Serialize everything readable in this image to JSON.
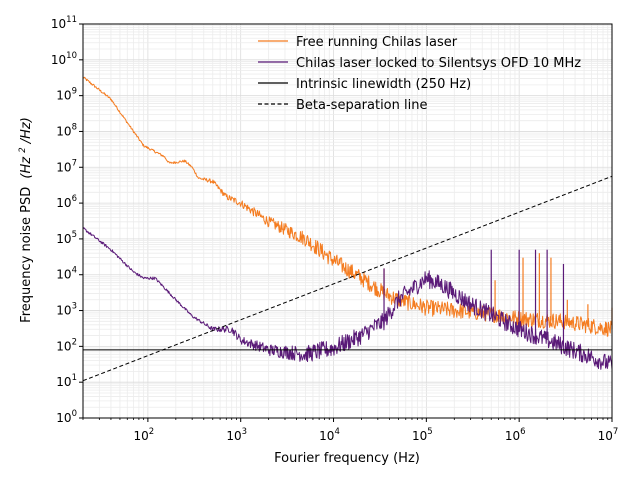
{
  "chart_data": {
    "type": "line",
    "title": "",
    "xlabel": "Fourier frequency (Hz)",
    "ylabel": "Frequency noise PSD",
    "ylabel_unit": "(Hz",
    "ylabel_unit_sup": "2",
    "ylabel_unit_tail": "/Hz)",
    "xscale": "log",
    "yscale": "log",
    "xlim": [
      20,
      10000000
    ],
    "ylim": [
      1,
      100000000000
    ],
    "grid": true,
    "legend_position": "top-right",
    "x_ticks": [
      {
        "base": "10",
        "exp": "2",
        "value": 100
      },
      {
        "base": "10",
        "exp": "3",
        "value": 1000
      },
      {
        "base": "10",
        "exp": "4",
        "value": 10000
      },
      {
        "base": "10",
        "exp": "5",
        "value": 100000
      },
      {
        "base": "10",
        "exp": "6",
        "value": 1000000
      },
      {
        "base": "10",
        "exp": "7",
        "value": 10000000
      }
    ],
    "y_ticks": [
      {
        "base": "10",
        "exp": "0",
        "value": 1
      },
      {
        "base": "10",
        "exp": "1",
        "value": 10
      },
      {
        "base": "10",
        "exp": "2",
        "value": 100
      },
      {
        "base": "10",
        "exp": "3",
        "value": 1000
      },
      {
        "base": "10",
        "exp": "4",
        "value": 10000
      },
      {
        "base": "10",
        "exp": "5",
        "value": 100000
      },
      {
        "base": "10",
        "exp": "6",
        "value": 1000000
      },
      {
        "base": "10",
        "exp": "7",
        "value": 10000000
      },
      {
        "base": "10",
        "exp": "8",
        "value": 100000000
      },
      {
        "base": "10",
        "exp": "9",
        "value": 1000000000
      },
      {
        "base": "10",
        "exp": "10",
        "value": 10000000000
      },
      {
        "base": "10",
        "exp": "11",
        "value": 100000000000
      }
    ],
    "series": [
      {
        "name": "Free running Chilas laser",
        "color": "#f47c20",
        "style": "solid",
        "noise_db": 0.45,
        "points": [
          [
            20,
            3300000000.0
          ],
          [
            40,
            800000000.0
          ],
          [
            70,
            100000000.0
          ],
          [
            90,
            40000000.0
          ],
          [
            150,
            20000000.0
          ],
          [
            170,
            13000000.0
          ],
          [
            250,
            15000000.0
          ],
          [
            300,
            10000000.0
          ],
          [
            350,
            5000000.0
          ],
          [
            500,
            4000000.0
          ],
          [
            700,
            1500000.0
          ],
          [
            1000,
            1000000.0
          ],
          [
            2000,
            300000.0
          ],
          [
            5000,
            100000.0
          ],
          [
            10000,
            25000.0
          ],
          [
            20000,
            8000.0
          ],
          [
            30000,
            4000.0
          ],
          [
            35000,
            3000.0
          ],
          [
            50000,
            2000.0
          ],
          [
            100000,
            1200.0
          ],
          [
            500000,
            800
          ],
          [
            1000000,
            600
          ],
          [
            3000000,
            500
          ],
          [
            10000000,
            300
          ]
        ],
        "spikes": [
          [
            35000,
            15000.0
          ],
          [
            550000,
            7000.0
          ],
          [
            1100000,
            30000.0
          ],
          [
            1650000,
            40000.0
          ],
          [
            2200000,
            30000.0
          ],
          [
            3300000,
            2000.0
          ],
          [
            5500000,
            1500.0
          ],
          [
            10000000,
            1200.0
          ]
        ]
      },
      {
        "name": "Chilas laser locked to Silentsys OFD 10 MHz",
        "color": "#5a1a78",
        "style": "solid",
        "noise_db": 0.5,
        "points": [
          [
            20,
            200000.0
          ],
          [
            40,
            50000.0
          ],
          [
            70,
            12000.0
          ],
          [
            90,
            8000.0
          ],
          [
            120,
            8000.0
          ],
          [
            200,
            2000.0
          ],
          [
            300,
            700
          ],
          [
            500,
            300
          ],
          [
            800,
            300
          ],
          [
            1000,
            150
          ],
          [
            2000,
            80
          ],
          [
            5000,
            60
          ],
          [
            10000,
            90
          ],
          [
            20000,
            200
          ],
          [
            30000,
            400
          ],
          [
            35000,
            500
          ],
          [
            50000,
            2000.0
          ],
          [
            100000,
            8000.0
          ],
          [
            150000,
            5000.0
          ],
          [
            300000,
            1500.0
          ],
          [
            1000000,
            300
          ],
          [
            3000000,
            100
          ],
          [
            10000000,
            30
          ]
        ],
        "spikes": [
          [
            35000,
            15000.0
          ],
          [
            500000,
            50000.0
          ],
          [
            1000000,
            50000.0
          ],
          [
            1500000,
            50000.0
          ],
          [
            2000000,
            50000.0
          ],
          [
            3000000,
            20000.0
          ]
        ]
      },
      {
        "name": "Intrinsic linewidth (250 Hz)",
        "color": "#000000",
        "style": "solid",
        "points": [
          [
            20,
            80
          ],
          [
            10000000,
            80
          ]
        ]
      },
      {
        "name": "Beta-separation line",
        "color": "#000000",
        "style": "dashed",
        "points": [
          [
            20,
            11
          ],
          [
            10000000,
            5600000.0
          ]
        ]
      }
    ]
  }
}
